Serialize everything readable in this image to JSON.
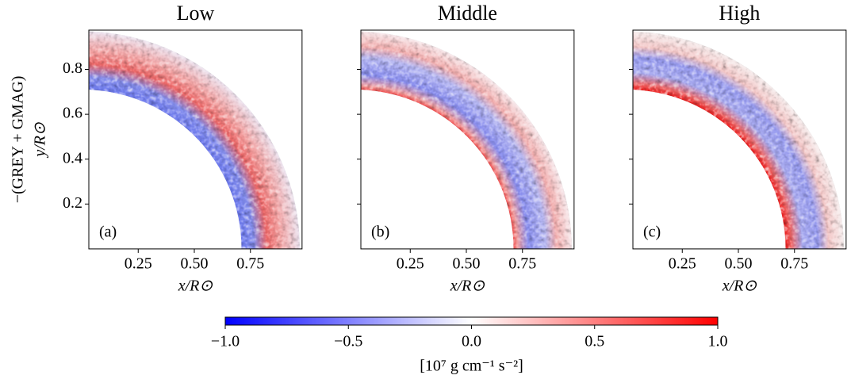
{
  "chart_data": [
    {
      "type": "heatmap",
      "title": "Low",
      "annotation": "(a)",
      "xlabel": "x/R⊙",
      "ylabel": [
        "−(GREY + GMAG)",
        "y/R⊙"
      ],
      "xlim": [
        0.03,
        0.98
      ],
      "ylim": [
        0,
        0.975
      ],
      "xticks": [
        0.25,
        {
          "value": 0.5,
          "label": "0.50"
        },
        0.75
      ],
      "yticks": [
        0.2,
        0.4,
        0.6,
        0.8
      ],
      "ytick_labels": true
    },
    {
      "type": "heatmap",
      "title": "Middle",
      "annotation": "(b)",
      "xlabel": "x/R⊙",
      "xlim": [
        0.03,
        0.98
      ],
      "ylim": [
        0,
        0.975
      ],
      "xticks": [
        0.25,
        {
          "value": 0.5,
          "label": "0.50"
        },
        0.75
      ],
      "yticks": [
        0.2,
        0.4,
        0.6,
        0.8
      ],
      "ytick_labels": false
    },
    {
      "type": "heatmap",
      "title": "High",
      "annotation": "(c)",
      "xlabel": "x/R⊙",
      "xlim": [
        0.03,
        0.98
      ],
      "ylim": [
        0,
        0.975
      ],
      "xticks": [
        0.25,
        {
          "value": 0.5,
          "label": "0.50"
        },
        0.75
      ],
      "yticks": [
        0.2,
        0.4,
        0.6,
        0.8
      ],
      "ytick_labels": false
    }
  ],
  "colorbar": {
    "clim": [
      -1,
      1
    ],
    "colors": [
      "#0000ff",
      "#ffffff",
      "#ff0000"
    ],
    "label": "[10⁷ g cm⁻¹ s⁻²]",
    "ticks": [
      {
        "value": -1,
        "label": "−1.0"
      },
      {
        "value": -0.5,
        "label": "−0.5"
      },
      {
        "value": 0,
        "label": "0.0"
      },
      {
        "value": 0.5,
        "label": "0.5"
      },
      {
        "value": 1,
        "label": "1.0"
      }
    ]
  }
}
